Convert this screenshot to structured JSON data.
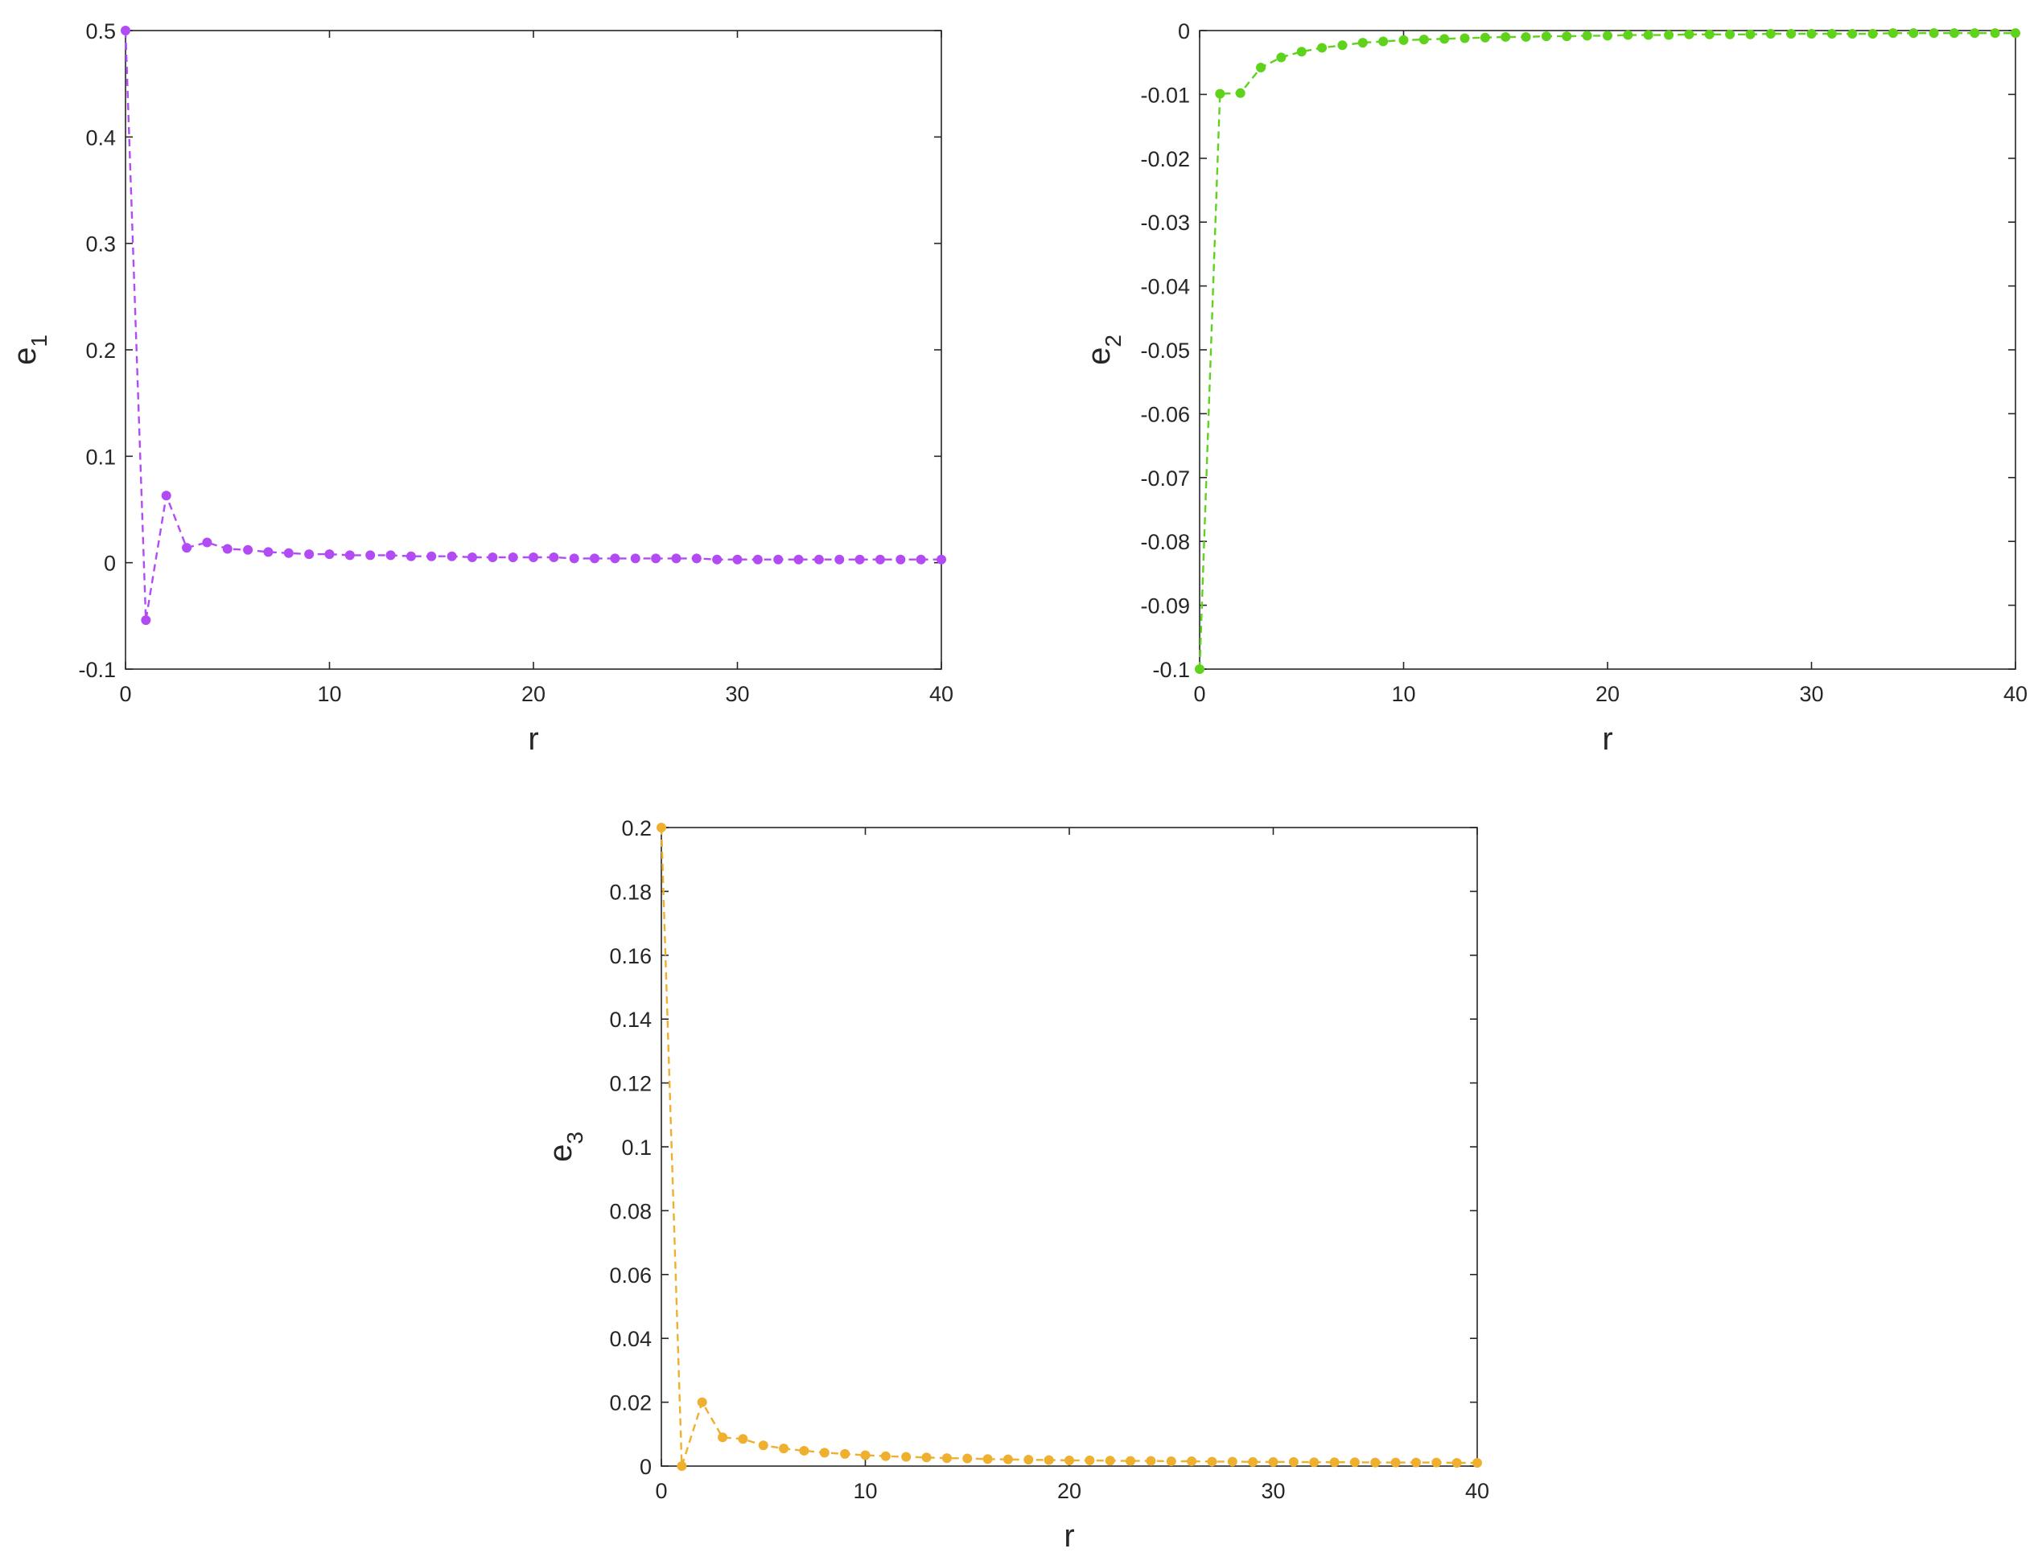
{
  "chart_data": [
    {
      "type": "line",
      "xlabel": "r",
      "ylabel": "e",
      "ylabel_sub": "1",
      "xlim": [
        0,
        40
      ],
      "ylim": [
        -0.1,
        0.5
      ],
      "xticks": [
        "0",
        "10",
        "20",
        "30",
        "40"
      ],
      "yticks": [
        "-0.1",
        "0",
        "0.1",
        "0.2",
        "0.3",
        "0.4",
        "0.5"
      ],
      "grid": false,
      "color": "#b24bf3",
      "line_style": "dashed",
      "marker": "dot",
      "x": [
        0,
        1,
        2,
        3,
        4,
        5,
        6,
        7,
        8,
        9,
        10,
        11,
        12,
        13,
        14,
        15,
        16,
        17,
        18,
        19,
        20,
        21,
        22,
        23,
        24,
        25,
        26,
        27,
        28,
        29,
        30,
        31,
        32,
        33,
        34,
        35,
        36,
        37,
        38,
        39,
        40
      ],
      "y": [
        0.5,
        -0.054,
        0.063,
        0.014,
        0.019,
        0.013,
        0.012,
        0.01,
        0.009,
        0.008,
        0.008,
        0.007,
        0.007,
        0.007,
        0.006,
        0.006,
        0.006,
        0.005,
        0.005,
        0.005,
        0.005,
        0.005,
        0.004,
        0.004,
        0.004,
        0.004,
        0.004,
        0.004,
        0.004,
        0.003,
        0.003,
        0.003,
        0.003,
        0.003,
        0.003,
        0.003,
        0.003,
        0.003,
        0.003,
        0.003,
        0.003
      ]
    },
    {
      "type": "line",
      "xlabel": "r",
      "ylabel": "e",
      "ylabel_sub": "2",
      "xlim": [
        0,
        40
      ],
      "ylim": [
        -0.1,
        0
      ],
      "xticks": [
        "0",
        "10",
        "20",
        "30",
        "40"
      ],
      "yticks": [
        "-0.1",
        "-0.09",
        "-0.08",
        "-0.07",
        "-0.06",
        "-0.05",
        "-0.04",
        "-0.03",
        "-0.02",
        "-0.01",
        "0"
      ],
      "grid": false,
      "color": "#5fd21c",
      "line_style": "dashed",
      "marker": "dot",
      "x": [
        0,
        1,
        2,
        3,
        4,
        5,
        6,
        7,
        8,
        9,
        10,
        11,
        12,
        13,
        14,
        15,
        16,
        17,
        18,
        19,
        20,
        21,
        22,
        23,
        24,
        25,
        26,
        27,
        28,
        29,
        30,
        31,
        32,
        33,
        34,
        35,
        36,
        37,
        38,
        39,
        40
      ],
      "y": [
        -0.1,
        -0.0099,
        -0.0098,
        -0.0058,
        -0.0042,
        -0.0033,
        -0.0027,
        -0.0023,
        -0.0019,
        -0.0017,
        -0.0015,
        -0.0014,
        -0.0013,
        -0.0012,
        -0.0011,
        -0.001,
        -0.001,
        -0.0009,
        -0.0009,
        -0.0008,
        -0.0008,
        -0.0007,
        -0.0007,
        -0.0007,
        -0.0006,
        -0.0006,
        -0.0006,
        -0.0006,
        -0.0005,
        -0.0005,
        -0.0005,
        -0.0005,
        -0.0005,
        -0.0005,
        -0.0004,
        -0.0004,
        -0.0004,
        -0.0004,
        -0.0004,
        -0.0004,
        -0.0004
      ]
    },
    {
      "type": "line",
      "xlabel": "r",
      "ylabel": "e",
      "ylabel_sub": "3",
      "xlim": [
        0,
        40
      ],
      "ylim": [
        0,
        0.2
      ],
      "xticks": [
        "0",
        "10",
        "20",
        "30",
        "40"
      ],
      "yticks": [
        "0",
        "0.02",
        "0.04",
        "0.06",
        "0.08",
        "0.1",
        "0.12",
        "0.14",
        "0.16",
        "0.18",
        "0.2"
      ],
      "grid": false,
      "color": "#eeb02e",
      "line_style": "dashed",
      "marker": "dot",
      "x": [
        0,
        1,
        2,
        3,
        4,
        5,
        6,
        7,
        8,
        9,
        10,
        11,
        12,
        13,
        14,
        15,
        16,
        17,
        18,
        19,
        20,
        21,
        22,
        23,
        24,
        25,
        26,
        27,
        28,
        29,
        30,
        31,
        32,
        33,
        34,
        35,
        36,
        37,
        38,
        39,
        40
      ],
      "y": [
        0.2,
        0,
        0.02,
        0.009,
        0.0085,
        0.0065,
        0.0055,
        0.0048,
        0.0042,
        0.0038,
        0.0034,
        0.0031,
        0.0029,
        0.0027,
        0.0025,
        0.0024,
        0.0022,
        0.0021,
        0.002,
        0.0019,
        0.0018,
        0.0018,
        0.0017,
        0.0016,
        0.0016,
        0.0015,
        0.0015,
        0.0014,
        0.0014,
        0.0013,
        0.0013,
        0.0013,
        0.0012,
        0.0012,
        0.0012,
        0.0011,
        0.0011,
        0.0011,
        0.0011,
        0.001,
        0.001
      ]
    }
  ]
}
